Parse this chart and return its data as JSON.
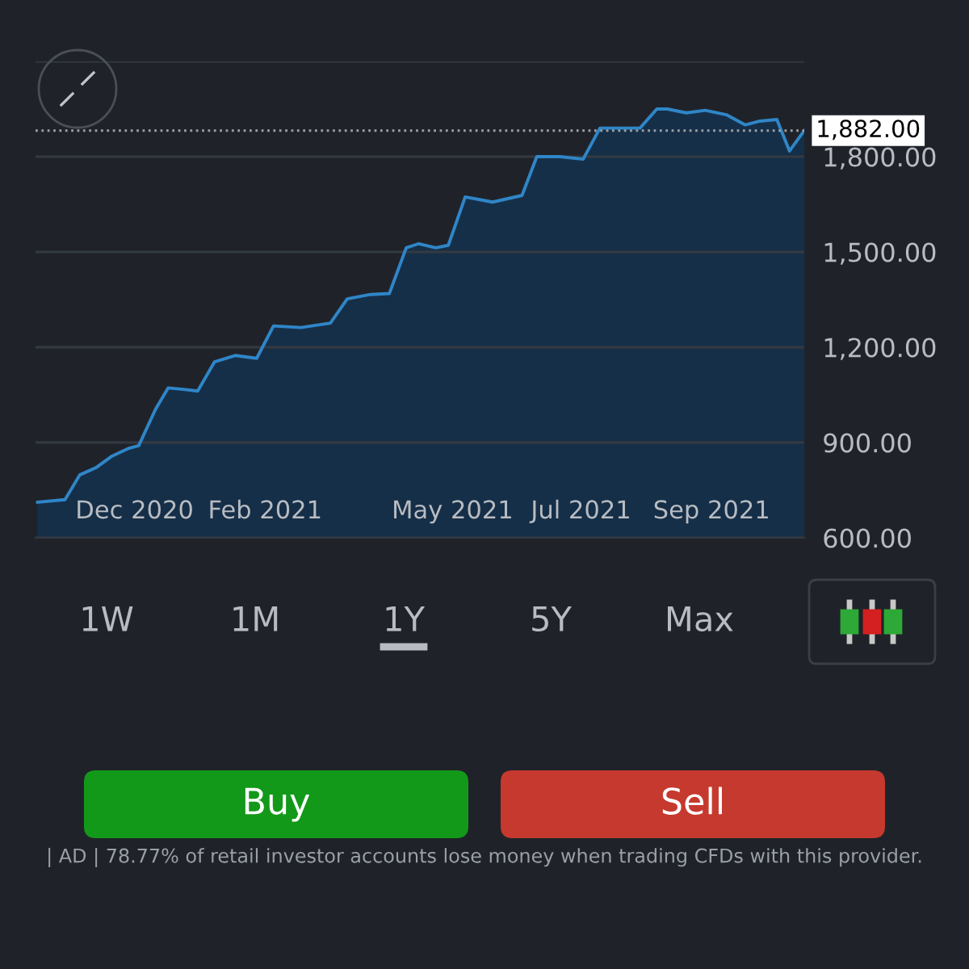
{
  "chart_data": {
    "type": "area",
    "x": [
      "2020-10-16",
      "2020-10-29",
      "2020-11-05",
      "2020-11-13",
      "2020-11-20",
      "2020-11-28",
      "2020-12-03",
      "2020-12-11",
      "2020-12-17",
      "2020-12-25",
      "2020-12-31",
      "2021-01-08",
      "2021-01-18",
      "2021-01-28",
      "2021-02-05",
      "2021-02-18",
      "2021-03-04",
      "2021-03-12",
      "2021-03-23",
      "2021-04-01",
      "2021-04-09",
      "2021-04-15",
      "2021-04-23",
      "2021-04-29",
      "2021-05-07",
      "2021-05-16",
      "2021-05-20",
      "2021-06-03",
      "2021-06-10",
      "2021-06-21",
      "2021-07-02",
      "2021-07-10",
      "2021-07-29",
      "2021-08-06",
      "2021-08-11",
      "2021-08-20",
      "2021-08-29",
      "2021-09-08",
      "2021-09-17",
      "2021-09-24",
      "2021-10-02",
      "2021-10-08",
      "2021-10-15"
    ],
    "series": [
      {
        "color": "#2f86c8",
        "values": [
          712,
          720,
          798,
          822,
          856,
          881,
          890,
          1005,
          1072,
          1067,
          1062,
          1154,
          1174,
          1165,
          1267,
          1262,
          1276,
          1352,
          1366,
          1369,
          1513,
          1526,
          1513,
          1521,
          1673,
          1662,
          1657,
          1678,
          1800,
          1800,
          1792,
          1890,
          1890,
          1950,
          1950,
          1938,
          1946,
          1932,
          1900,
          1912,
          1917,
          1818,
          1882
        ]
      }
    ],
    "xlim": [
      "2020-10-15",
      "2021-10-15"
    ],
    "xticks": [
      {
        "value": "2020-12-01",
        "label": "Dec 2020"
      },
      {
        "value": "2021-02-01",
        "label": "Feb 2021"
      },
      {
        "value": "2021-05-01",
        "label": "May 2021"
      },
      {
        "value": "2021-07-01",
        "label": "Jul 2021"
      },
      {
        "value": "2021-09-01",
        "label": "Sep 2021"
      }
    ],
    "ylim": [
      600,
      2100
    ],
    "yticks": [
      {
        "value": 600,
        "label": "600.00"
      },
      {
        "value": 900,
        "label": "900.00"
      },
      {
        "value": 1200,
        "label": "1,200.00"
      },
      {
        "value": 1500,
        "label": "1,500.00"
      },
      {
        "value": 1800,
        "label": "1,800.00"
      },
      {
        "value": 2100,
        "label": null
      }
    ],
    "grid": "y",
    "ref_lines": [
      {
        "axis": "y",
        "value": 1882,
        "label": "1,882.00",
        "color": "#9aa0a6",
        "line_style": "dotted"
      }
    ],
    "annotations": [
      "1W",
      "1M",
      "1Y",
      "5Y",
      "Max",
      "Buy",
      "Sell",
      "| AD | 78.77% of retail investor accounts lose money when trading CFDs with this provider."
    ]
  }
}
